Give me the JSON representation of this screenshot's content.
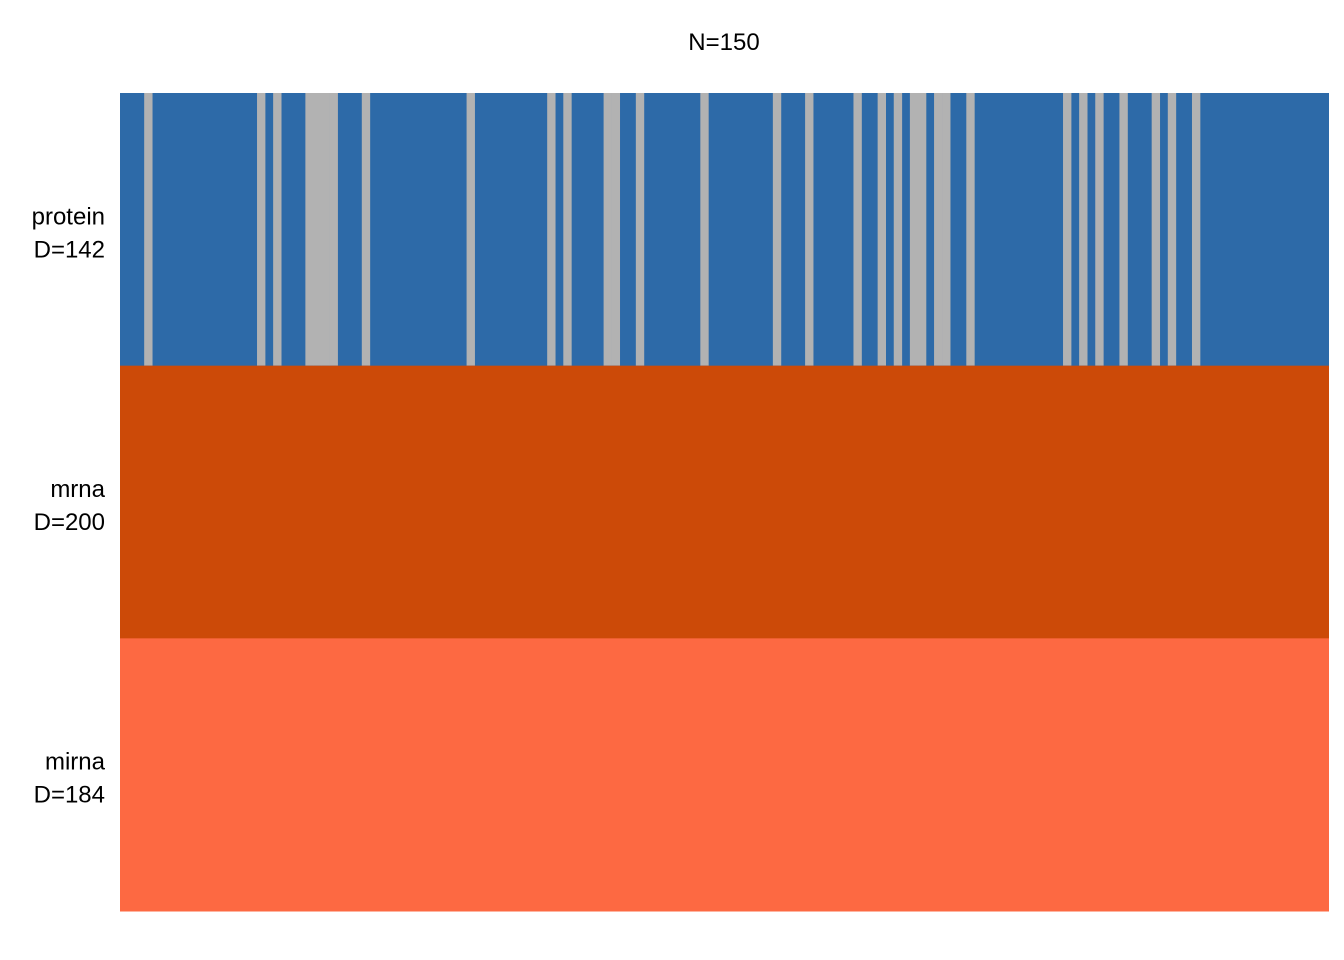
{
  "chart_data": {
    "type": "heatmap",
    "title": "N=150",
    "n_samples": 150,
    "legend": "none",
    "grid": false,
    "colors": {
      "protein": "#2d6aa8",
      "mrna": "#cc4a08",
      "mirna": "#fd6942",
      "missing": "#b2b2b2"
    },
    "views": [
      {
        "name": "protein",
        "dim_label": "D=142",
        "color_key": "protein",
        "missing_samples": [
          3,
          17,
          19,
          23,
          24,
          25,
          26,
          30,
          43,
          53,
          55,
          60,
          61,
          64,
          72,
          81,
          85,
          91,
          94,
          96,
          98,
          99,
          101,
          102,
          105,
          117,
          119,
          121,
          124,
          128,
          130,
          133
        ]
      },
      {
        "name": "mrna",
        "dim_label": "D=200",
        "color_key": "mrna",
        "missing_samples": []
      },
      {
        "name": "mirna",
        "dim_label": "D=184",
        "color_key": "mirna",
        "missing_samples": []
      }
    ]
  }
}
